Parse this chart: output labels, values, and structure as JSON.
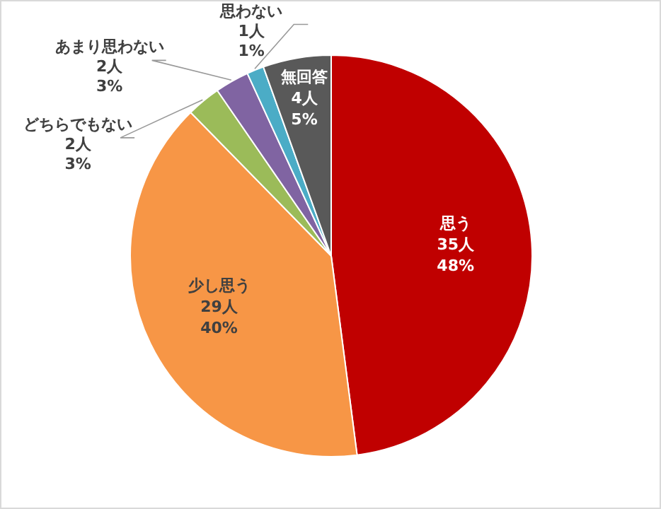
{
  "chart_data": {
    "type": "pie",
    "categories": [
      "思う",
      "少し思う",
      "どちらでもない",
      "あまり思わない",
      "思わない",
      "無回答"
    ],
    "values": [
      35,
      29,
      2,
      2,
      1,
      4
    ],
    "colors": [
      "#c00000",
      "#f79646",
      "#9bbb59",
      "#8064a2",
      "#4bacc6",
      "#595959"
    ],
    "value_labels": [
      "35人\n48%",
      "29人\n40%",
      "2人\n3%",
      "2人\n3%",
      "1人\n1%",
      "4人\n5%"
    ]
  }
}
